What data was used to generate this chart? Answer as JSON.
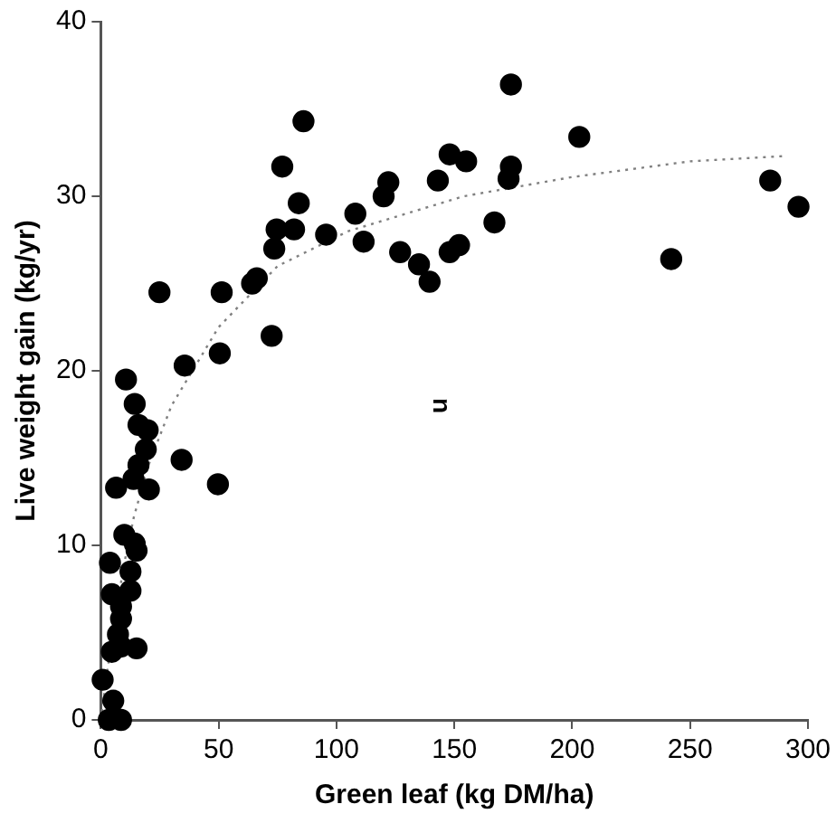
{
  "chart_data": {
    "type": "scatter",
    "xlabel": "Green leaf (kg DM/ha)",
    "ylabel": "Live weight gain (kg/yr)",
    "xlim": [
      0,
      300
    ],
    "xticks": [
      0,
      50,
      100,
      150,
      200,
      250,
      300
    ],
    "ylim": [
      0,
      40
    ],
    "yticks": [
      0,
      10,
      20,
      30,
      40
    ],
    "grid": false,
    "legend": false,
    "annotations": [
      "n"
    ],
    "series": [
      {
        "color": "#000000",
        "marker": "circle",
        "x": [
          174,
          203,
          148,
          155,
          174,
          173,
          143,
          122,
          120,
          284,
          296,
          108,
          167,
          111.5,
          127,
          135,
          148,
          152,
          139.5,
          242,
          86,
          77,
          84,
          74.6,
          82,
          95.6,
          73.6,
          66.2,
          64.2,
          24.9,
          51.3,
          72.5,
          50.5,
          35.6,
          10.7,
          14.4,
          16,
          19.9,
          19.1,
          16,
          34.3,
          6.5,
          13.9,
          20.4,
          49.7,
          10,
          14.4,
          15.2,
          3.9,
          12.6,
          12.6,
          4.7,
          8.6,
          8.6,
          7.3,
          15.2,
          4.7,
          8.6,
          0.8,
          5.3,
          8.6,
          3.4
        ],
        "values": [
          36.4,
          33.4,
          32.4,
          32,
          31.7,
          31,
          30.9,
          30.8,
          30,
          30.9,
          29.4,
          29,
          28.5,
          27.4,
          26.8,
          26.1,
          26.8,
          27.2,
          25.1,
          26.4,
          34.3,
          31.7,
          29.6,
          28.1,
          28.1,
          27.8,
          27,
          25.3,
          25,
          24.5,
          24.5,
          22,
          21,
          20.3,
          19.5,
          18.1,
          16.9,
          16.6,
          15.5,
          14.6,
          14.9,
          13.3,
          13.8,
          13.2,
          13.5,
          10.6,
          10.1,
          9.7,
          9,
          8.5,
          7.4,
          7.2,
          6.5,
          5.8,
          4.9,
          4.1,
          3.9,
          4.2,
          2.3,
          1.1,
          0,
          0
        ]
      },
      {
        "type": "line",
        "color": "#808080",
        "marker": "none",
        "line_style": "dotted",
        "x": [
          0,
          5,
          10,
          14,
          20,
          30,
          50,
          75,
          105,
          154,
          200,
          250,
          290
        ],
        "values": [
          0,
          5,
          9,
          11.6,
          14.5,
          18,
          22.5,
          26,
          28,
          30,
          31.1,
          32,
          32.3
        ]
      }
    ]
  }
}
